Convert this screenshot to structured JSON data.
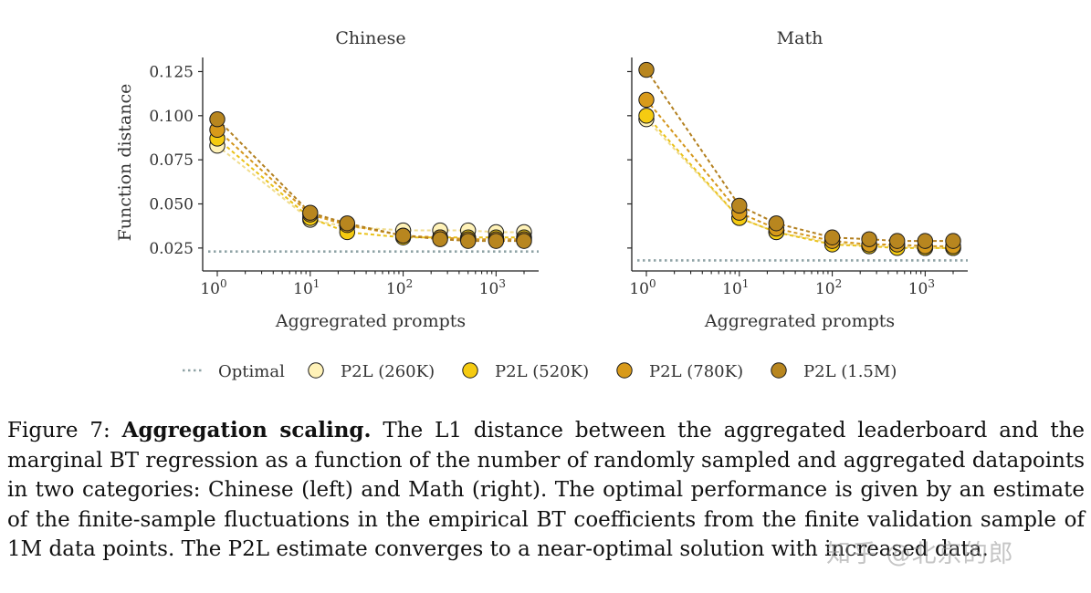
{
  "chart_data": [
    {
      "type": "line",
      "title": "Chinese",
      "xlabel": "Aggregrated prompts",
      "ylabel": "Function distance",
      "xscale": "log",
      "xlim": [
        1,
        2000
      ],
      "ylim": [
        0.012,
        0.133
      ],
      "yticks": [
        0.025,
        0.05,
        0.075,
        0.1,
        0.125
      ],
      "ytick_labels": [
        "0.025",
        "0.050",
        "0.075",
        "0.100",
        "0.125"
      ],
      "xticks": [
        1,
        10,
        100,
        1000
      ],
      "xtick_labels": [
        [
          "10",
          "0"
        ],
        [
          "10",
          "1"
        ],
        [
          "10",
          "2"
        ],
        [
          "10",
          "3"
        ]
      ],
      "x": [
        1,
        10,
        25,
        100,
        250,
        500,
        1000,
        2000
      ],
      "optimal": 0.023,
      "series": [
        {
          "name": "P2L (260K)",
          "values": [
            0.083,
            0.041,
            0.037,
            0.035,
            0.035,
            0.035,
            0.034,
            0.034
          ]
        },
        {
          "name": "P2L (520K)",
          "values": [
            0.087,
            0.042,
            0.034,
            0.031,
            0.031,
            0.031,
            0.031,
            0.031
          ]
        },
        {
          "name": "P2L (780K)",
          "values": [
            0.092,
            0.044,
            0.038,
            0.032,
            0.031,
            0.03,
            0.03,
            0.03
          ]
        },
        {
          "name": "P2L (1.5M)",
          "values": [
            0.098,
            0.045,
            0.039,
            0.032,
            0.03,
            0.029,
            0.029,
            0.029
          ]
        }
      ]
    },
    {
      "type": "line",
      "title": "Math",
      "xlabel": "Aggregrated prompts",
      "ylabel": "",
      "xscale": "log",
      "xlim": [
        1,
        2000
      ],
      "ylim": [
        0.012,
        0.133
      ],
      "yticks": [
        0.025,
        0.05,
        0.075,
        0.1,
        0.125
      ],
      "xticks": [
        1,
        10,
        100,
        1000
      ],
      "xtick_labels": [
        [
          "10",
          "0"
        ],
        [
          "10",
          "1"
        ],
        [
          "10",
          "2"
        ],
        [
          "10",
          "3"
        ]
      ],
      "x": [
        1,
        10,
        25,
        100,
        250,
        500,
        1000,
        2000
      ],
      "optimal": 0.018,
      "series": [
        {
          "name": "P2L (260K)",
          "values": [
            0.098,
            0.042,
            0.034,
            0.028,
            0.026,
            0.026,
            0.025,
            0.025
          ]
        },
        {
          "name": "P2L (520K)",
          "values": [
            0.1,
            0.042,
            0.034,
            0.027,
            0.026,
            0.025,
            0.025,
            0.025
          ]
        },
        {
          "name": "P2L (780K)",
          "values": [
            0.109,
            0.045,
            0.036,
            0.029,
            0.027,
            0.027,
            0.026,
            0.026
          ]
        },
        {
          "name": "P2L (1.5M)",
          "values": [
            0.126,
            0.049,
            0.039,
            0.031,
            0.03,
            0.029,
            0.029,
            0.029
          ]
        }
      ]
    }
  ],
  "legend": {
    "items": [
      {
        "label": "Optimal",
        "kind": "line",
        "color": "#8FA3A6"
      },
      {
        "label": "P2L (260K)",
        "kind": "point",
        "color": "#FFF2B8"
      },
      {
        "label": "P2L (520K)",
        "kind": "point",
        "color": "#F5CB11"
      },
      {
        "label": "P2L (780K)",
        "kind": "point",
        "color": "#D89A1A"
      },
      {
        "label": "P2L (1.5M)",
        "kind": "point",
        "color": "#B8861F"
      }
    ]
  },
  "colors": {
    "optimal": "#8FA3A6",
    "series": [
      "#FFF2B8",
      "#F5CB11",
      "#D89A1A",
      "#B8861F"
    ],
    "series_lines": [
      "#F0DC8C",
      "#EAC21A",
      "#D4961C",
      "#B38020"
    ]
  },
  "caption": {
    "figure_label": "Figure 7:",
    "bold_title": "Aggregation scaling.",
    "text": "The L1 distance between the aggregated leaderboard and the marginal BT regression as a function of the number of randomly sampled and aggregated datapoints in two categories: Chinese (left) and Math (right). The optimal performance is given by an estimate of the finite-sample fluctuations in the empirical BT coefficients from the finite validation sample of 1M data points. The P2L estimate converges to a near-optimal solution with increased data."
  },
  "watermark": "知乎 @北京的郎"
}
